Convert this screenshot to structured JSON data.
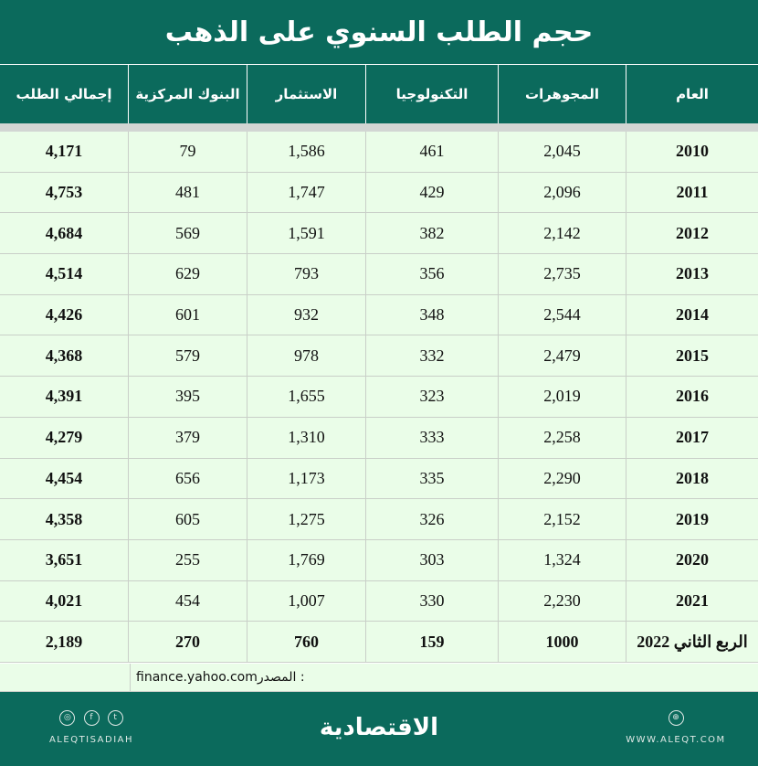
{
  "title": "حجم الطلب السنوي على الذهب",
  "headers": [
    "العام",
    "المجوهرات",
    "التكنولوجيا",
    "الاستثمار",
    "البنوك المركزية",
    "إجمالي الطلب"
  ],
  "rows": [
    [
      "2010",
      "2,045",
      "461",
      "1,586",
      "79",
      "4,171"
    ],
    [
      "2011",
      "2,096",
      "429",
      "1,747",
      "481",
      "4,753"
    ],
    [
      "2012",
      "2,142",
      "382",
      "1,591",
      "569",
      "4,684"
    ],
    [
      "2013",
      "2,735",
      "356",
      "793",
      "629",
      "4,514"
    ],
    [
      "2014",
      "2,544",
      "348",
      "932",
      "601",
      "4,426"
    ],
    [
      "2015",
      "2,479",
      "332",
      "978",
      "579",
      "4,368"
    ],
    [
      "2016",
      "2,019",
      "323",
      "1,655",
      "395",
      "4,391"
    ],
    [
      "2017",
      "2,258",
      "333",
      "1,310",
      "379",
      "4,279"
    ],
    [
      "2018",
      "2,290",
      "335",
      "1,173",
      "656",
      "4,454"
    ],
    [
      "2019",
      "2,152",
      "326",
      "1,275",
      "605",
      "4,358"
    ],
    [
      "2020",
      "1,324",
      "303",
      "1,769",
      "255",
      "3,651"
    ],
    [
      "2021",
      "2,230",
      "330",
      "1,007",
      "454",
      "4,021"
    ],
    [
      "الربع الثاني 2022",
      "1000",
      "159",
      "760",
      "270",
      "2,189"
    ]
  ],
  "source_label": "المصدر :",
  "source_value": "finance.yahoo.com",
  "footer": {
    "brand": "الاقتصادية",
    "website": "WWW.ALEQT.COM",
    "handle": "ALEQTISADIAH",
    "icons": [
      "globe-icon",
      "instagram-icon",
      "facebook-icon",
      "twitter-icon"
    ],
    "icon_glyphs": {
      "globe": "⊕",
      "instagram": "◎",
      "facebook": "f",
      "twitter": "t"
    }
  },
  "colors": {
    "brand_green": "#0b6a5c",
    "row_bg": "#eafde8",
    "separator": "#d2d6d3"
  }
}
